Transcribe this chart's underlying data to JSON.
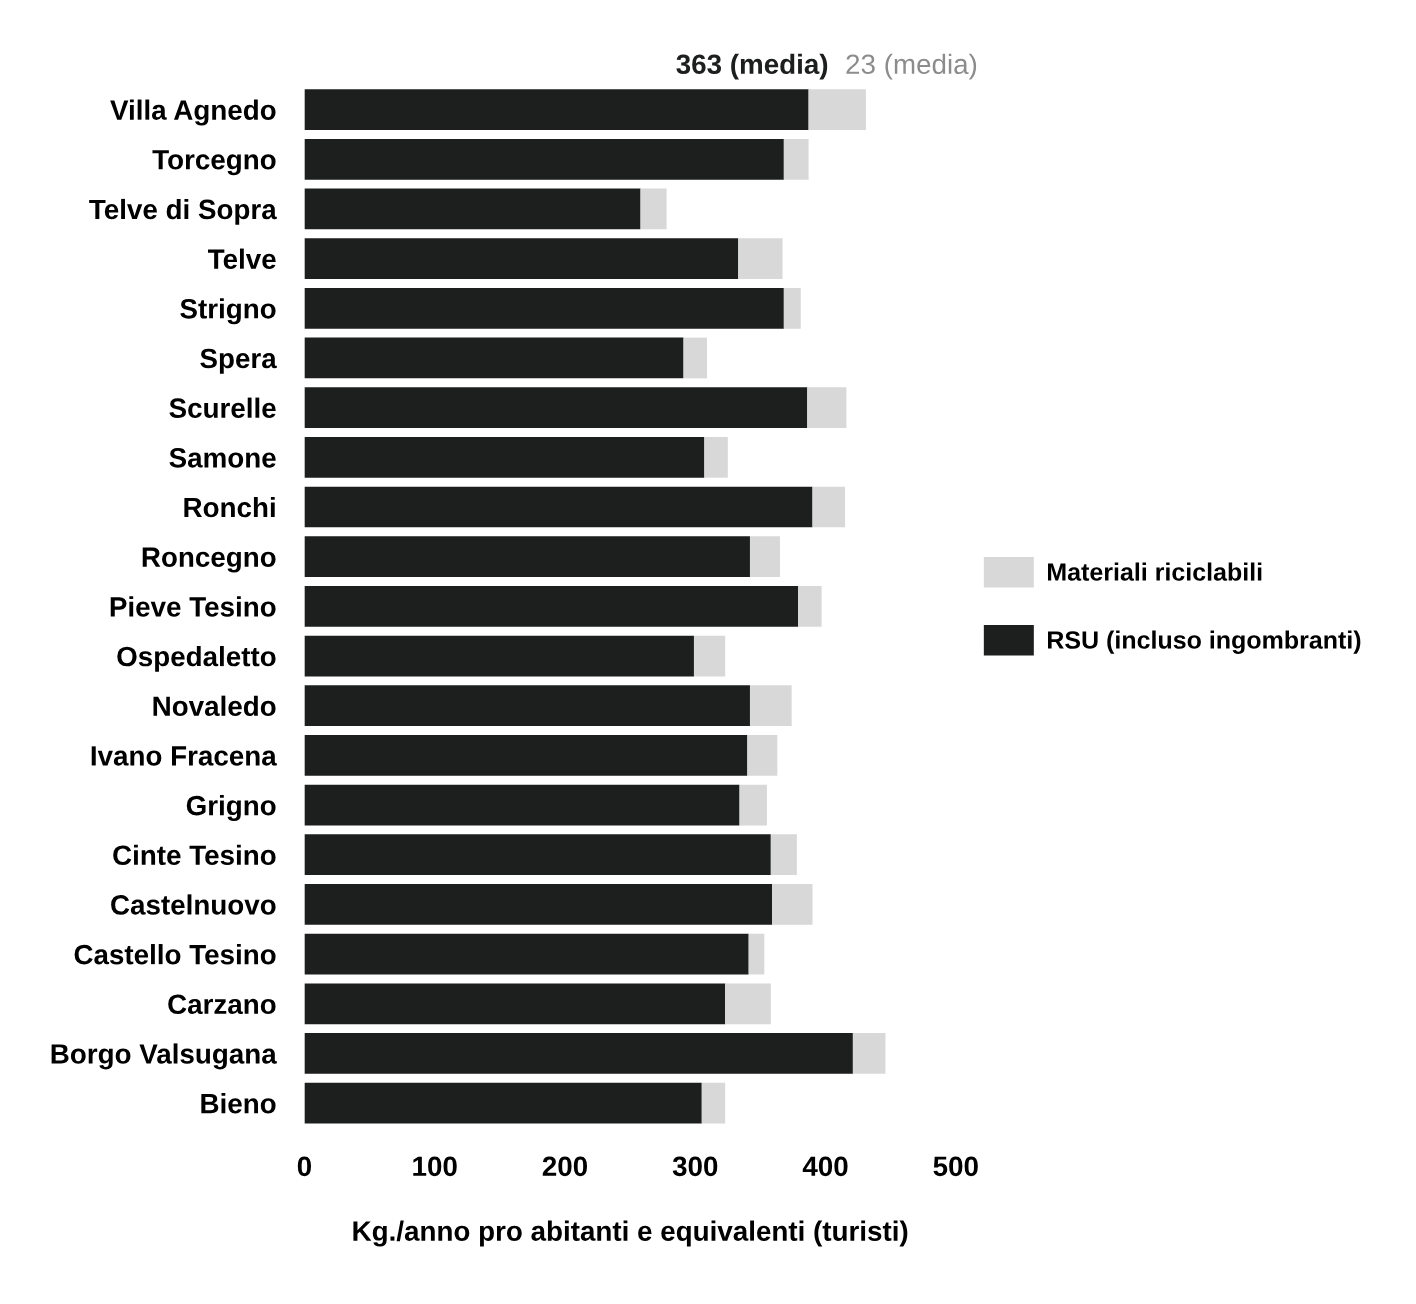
{
  "chart_data": {
    "type": "bar",
    "orientation": "horizontal",
    "stacked": true,
    "categories": [
      "Villa Agnedo",
      "Torcegno",
      "Telve di Sopra",
      "Telve",
      "Strigno",
      "Spera",
      "Scurelle",
      "Samone",
      "Ronchi",
      "Roncegno",
      "Pieve Tesino",
      "Ospedaletto",
      "Novaledo",
      "Ivano Fracena",
      "Grigno",
      "Cinte Tesino",
      "Castelnuovo",
      "Castello Tesino",
      "Carzano",
      "Borgo Valsugana",
      "Bieno"
    ],
    "series": [
      {
        "name": "RSU (incluso ingombranti)",
        "color": "#1c1f1e",
        "values": [
          387,
          368,
          258,
          333,
          368,
          291,
          386,
          307,
          390,
          342,
          379,
          299,
          342,
          340,
          334,
          358,
          359,
          341,
          323,
          421,
          305
        ]
      },
      {
        "name": "Materiali riciclabili",
        "color": "#d8d8d8",
        "values": [
          44,
          19,
          20,
          34,
          13,
          18,
          30,
          18,
          25,
          23,
          18,
          24,
          32,
          23,
          21,
          20,
          31,
          12,
          35,
          25,
          18
        ]
      }
    ],
    "xlim": [
      0,
      500
    ],
    "xticks": [
      0,
      100,
      200,
      300,
      400,
      500
    ],
    "xlabel": "Kg./anno pro abitanti e equivalenti (turisti)",
    "annotations": [
      "363 (media)",
      "23 (media)"
    ],
    "legend": "right",
    "grid": false
  }
}
